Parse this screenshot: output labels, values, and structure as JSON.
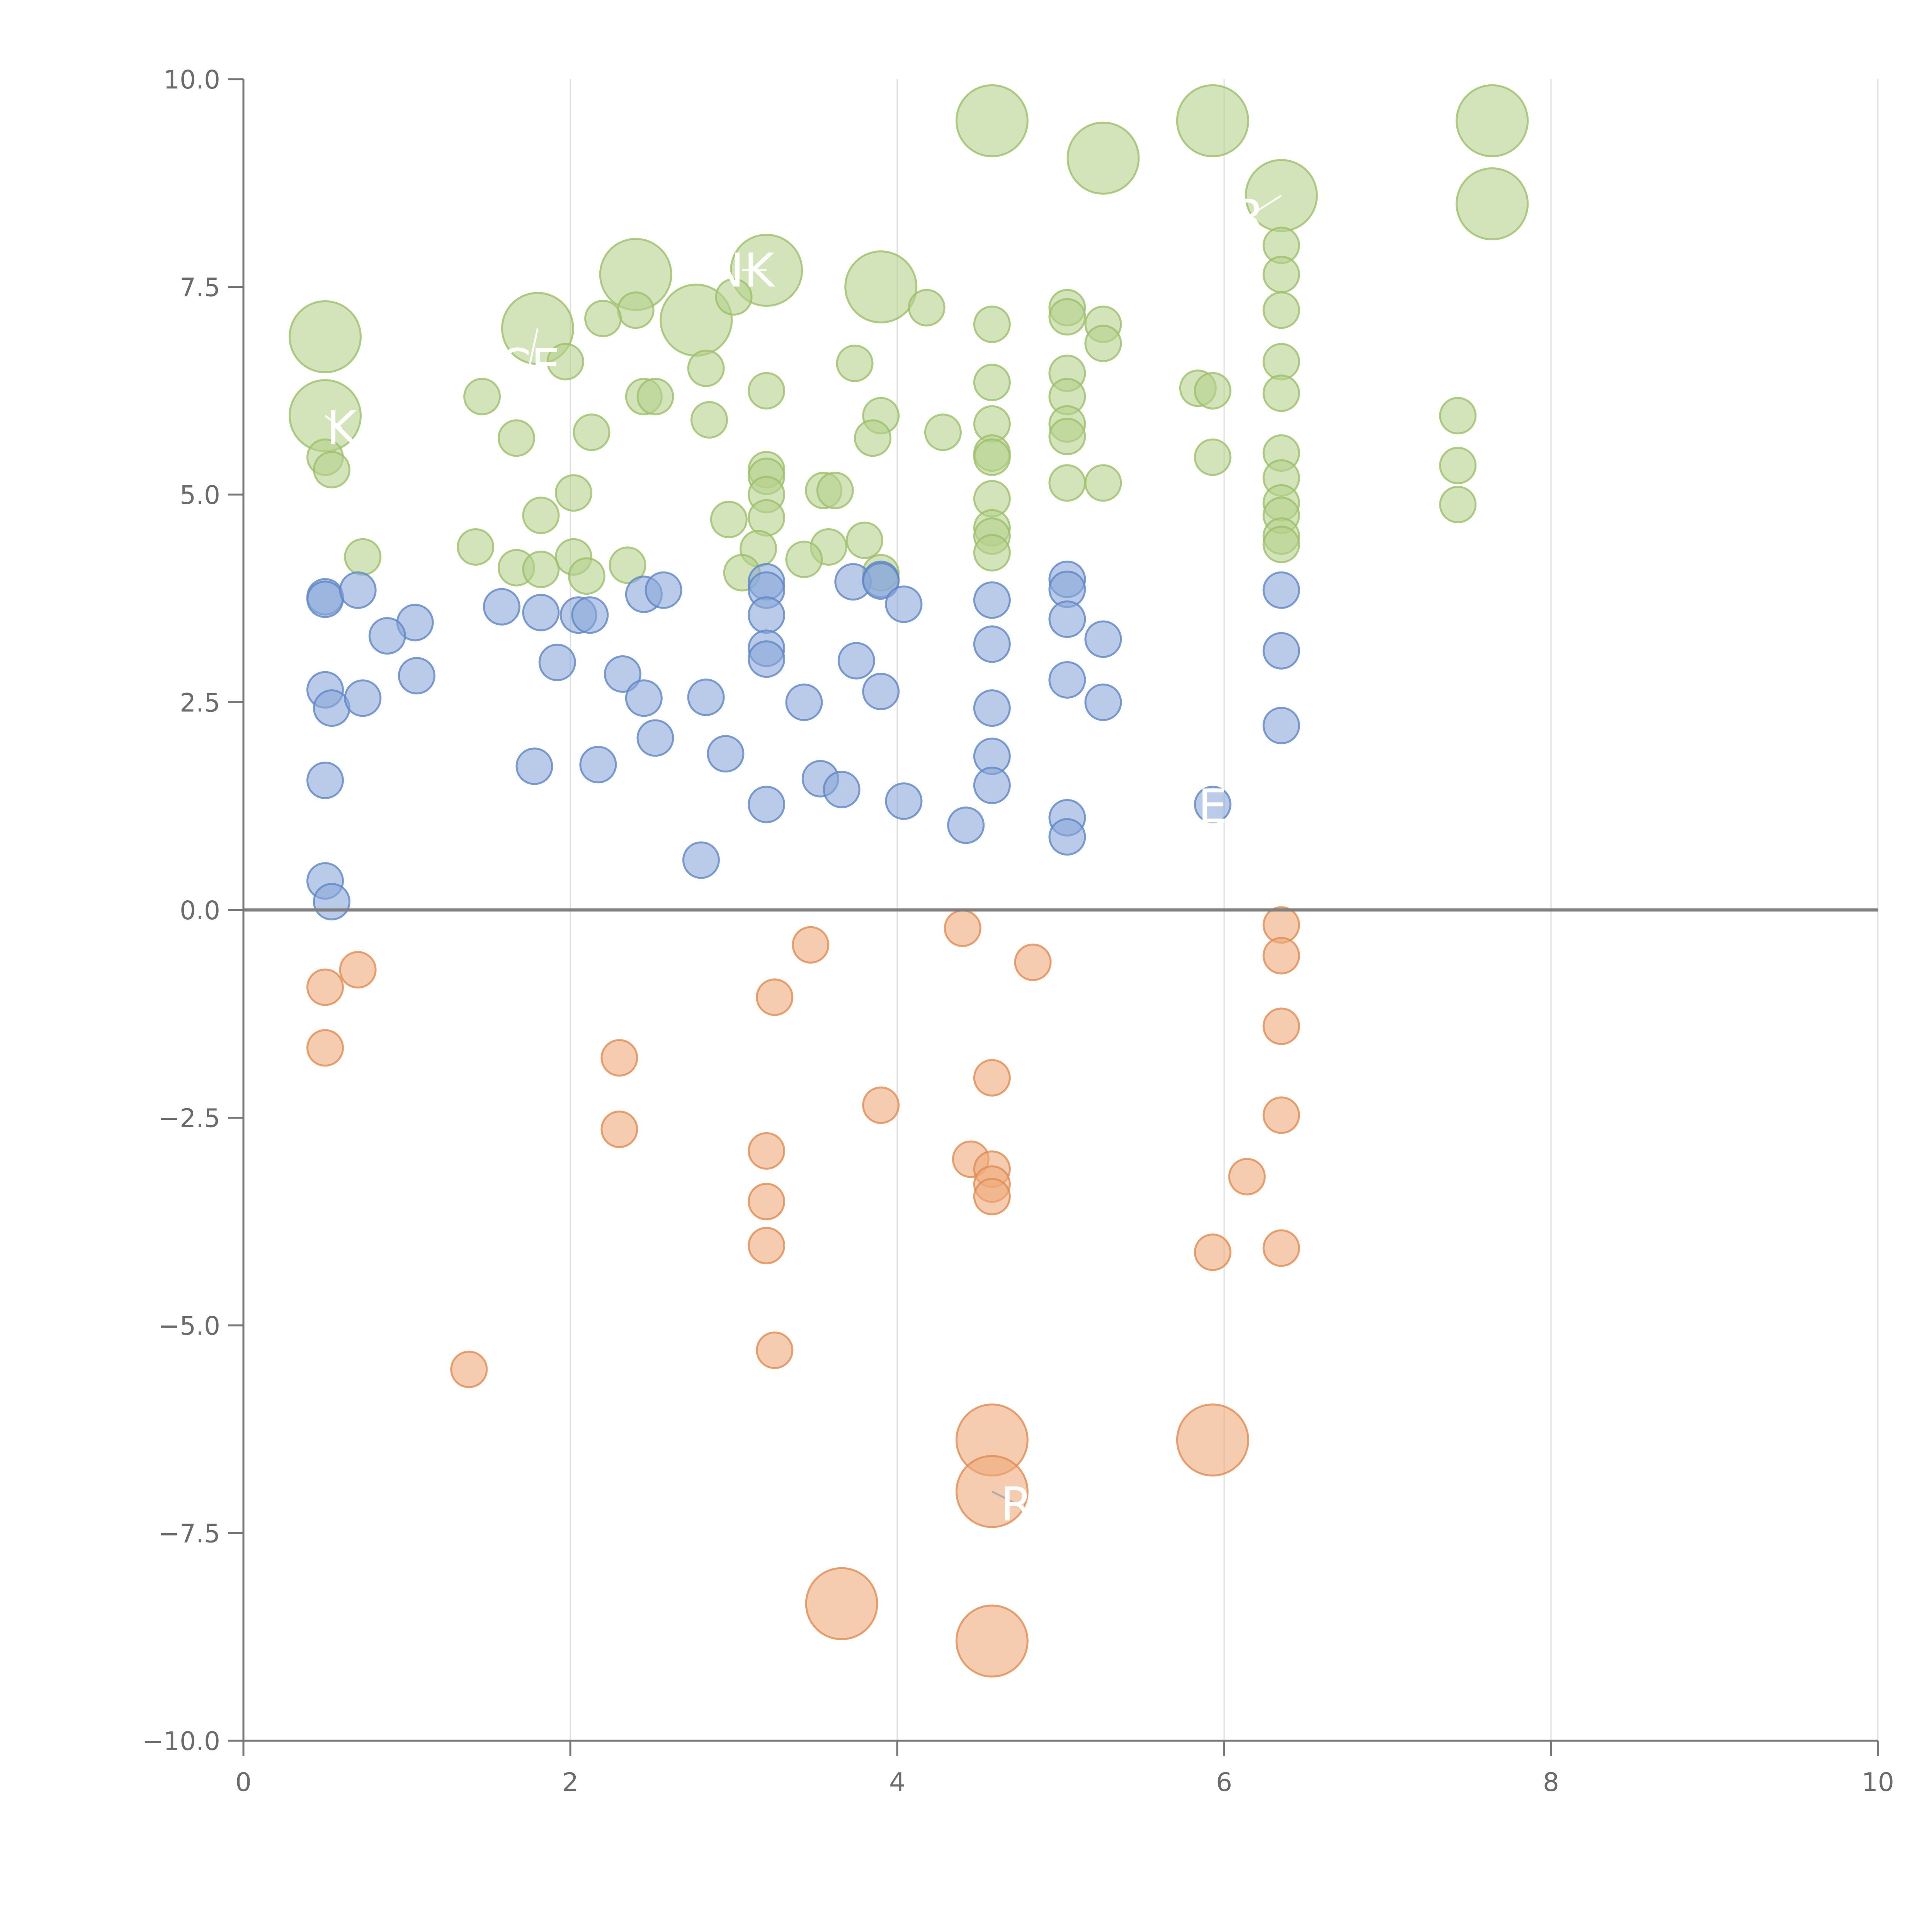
{
  "chart_data": {
    "type": "scatter",
    "title": "",
    "xlabel": "",
    "ylabel": "",
    "xlim": [
      0,
      10
    ],
    "ylim": [
      -10,
      10
    ],
    "x_ticks": [
      0,
      2,
      4,
      6,
      8,
      10
    ],
    "x_tick_labels": [
      "0",
      "2",
      "4",
      "6",
      "8",
      "10"
    ],
    "y_ticks": [
      -10,
      -7.5,
      -5,
      -2.5,
      0,
      2.5,
      5,
      7.5,
      10
    ],
    "y_tick_labels": [
      "−10.0",
      "−7.5",
      "−5.0",
      "−2.5",
      "0.0",
      "2.5",
      "5.0",
      "7.5",
      "10.0"
    ],
    "grid": "vertical",
    "zero_line": true,
    "colors": {
      "green_fill": "#b5d08c",
      "green_edge": "#9cbf6a",
      "blue_fill": "#8aa8d8",
      "blue_edge": "#5f86c4",
      "orange_fill": "#eeaa7a",
      "orange_edge": "#e08c52",
      "axis": "#777777",
      "grid": "#dddddd",
      "zero_line": "#808080",
      "annotation_line_light": "#ffffff",
      "annotation_line_dark": "#aaaaaa"
    },
    "series": [
      {
        "name": "green",
        "color": "green",
        "points": [
          [
            4.58,
            9.5,
            1
          ],
          [
            5.93,
            9.5,
            1
          ],
          [
            7.64,
            9.5,
            1
          ],
          [
            5.26,
            9.05,
            1
          ],
          [
            6.35,
            8.6,
            1
          ],
          [
            7.64,
            8.5,
            1
          ],
          [
            6.35,
            8.0,
            0
          ],
          [
            6.35,
            7.65,
            0
          ],
          [
            6.35,
            7.22,
            0
          ],
          [
            6.35,
            6.6,
            0
          ],
          [
            6.35,
            6.22,
            0
          ],
          [
            6.35,
            5.5,
            0
          ],
          [
            6.35,
            5.2,
            0
          ],
          [
            6.35,
            4.9,
            0
          ],
          [
            6.35,
            4.75,
            0
          ],
          [
            6.35,
            4.5,
            0
          ],
          [
            6.35,
            4.4,
            0
          ],
          [
            2.4,
            7.65,
            1
          ],
          [
            3.2,
            7.7,
            1
          ],
          [
            3.9,
            7.5,
            1
          ],
          [
            2.77,
            7.1,
            1
          ],
          [
            1.8,
            7.0,
            1
          ],
          [
            0.5,
            6.9,
            1
          ],
          [
            0.5,
            5.95,
            1
          ],
          [
            2.4,
            7.22,
            0
          ],
          [
            2.2,
            7.12,
            0
          ],
          [
            3.0,
            7.38,
            0
          ],
          [
            4.18,
            7.25,
            0
          ],
          [
            4.58,
            7.05,
            0
          ],
          [
            5.04,
            7.25,
            0
          ],
          [
            5.04,
            7.14,
            0
          ],
          [
            5.26,
            7.05,
            0
          ],
          [
            5.26,
            6.82,
            0
          ],
          [
            2.83,
            6.52,
            0
          ],
          [
            3.74,
            6.58,
            0
          ],
          [
            1.97,
            6.6,
            0
          ],
          [
            4.58,
            6.35,
            0
          ],
          [
            5.04,
            6.46,
            0
          ],
          [
            5.04,
            6.18,
            0
          ],
          [
            5.84,
            6.28,
            0
          ],
          [
            5.93,
            6.25,
            0
          ],
          [
            1.46,
            6.18,
            0
          ],
          [
            2.45,
            6.18,
            0
          ],
          [
            2.52,
            6.18,
            0
          ],
          [
            3.2,
            6.25,
            0
          ],
          [
            3.9,
            5.95,
            0
          ],
          [
            2.85,
            5.9,
            0
          ],
          [
            7.43,
            5.95,
            0
          ],
          [
            1.67,
            5.68,
            0
          ],
          [
            2.13,
            5.75,
            0
          ],
          [
            3.85,
            5.68,
            0
          ],
          [
            4.28,
            5.75,
            0
          ],
          [
            4.58,
            5.85,
            0
          ],
          [
            5.04,
            5.85,
            0
          ],
          [
            5.04,
            5.7,
            0
          ],
          [
            0.5,
            5.45,
            0
          ],
          [
            0.54,
            5.3,
            0
          ],
          [
            4.58,
            5.5,
            0
          ],
          [
            4.58,
            5.45,
            0
          ],
          [
            5.93,
            5.45,
            0
          ],
          [
            7.43,
            5.35,
            0
          ],
          [
            3.2,
            5.3,
            0
          ],
          [
            3.2,
            5.22,
            0
          ],
          [
            3.2,
            5.0,
            0
          ],
          [
            3.55,
            5.05,
            0
          ],
          [
            3.62,
            5.05,
            0
          ],
          [
            2.02,
            5.02,
            0
          ],
          [
            5.04,
            5.14,
            0
          ],
          [
            5.26,
            5.14,
            0
          ],
          [
            4.58,
            4.95,
            0
          ],
          [
            7.43,
            4.88,
            0
          ],
          [
            1.82,
            4.75,
            0
          ],
          [
            2.97,
            4.7,
            0
          ],
          [
            3.2,
            4.72,
            0
          ],
          [
            4.58,
            4.6,
            0
          ],
          [
            4.58,
            4.5,
            0
          ],
          [
            1.42,
            4.37,
            0
          ],
          [
            3.15,
            4.35,
            0
          ],
          [
            3.58,
            4.37,
            0
          ],
          [
            3.8,
            4.45,
            0
          ],
          [
            4.58,
            4.3,
            0
          ],
          [
            0.73,
            4.25,
            0
          ],
          [
            2.02,
            4.25,
            0
          ],
          [
            3.43,
            4.22,
            0
          ],
          [
            1.67,
            4.12,
            0
          ],
          [
            1.82,
            4.1,
            0
          ],
          [
            2.35,
            4.15,
            0
          ],
          [
            2.1,
            4.02,
            0
          ],
          [
            3.05,
            4.06,
            0
          ],
          [
            3.9,
            4.06,
            0
          ]
        ]
      },
      {
        "name": "blue",
        "color": "blue",
        "points": [
          [
            0.5,
            3.77,
            0
          ],
          [
            0.5,
            3.74,
            0
          ],
          [
            0.7,
            3.85,
            0
          ],
          [
            1.05,
            3.46,
            0
          ],
          [
            0.88,
            3.3,
            0
          ],
          [
            1.58,
            3.65,
            0
          ],
          [
            1.82,
            3.58,
            0
          ],
          [
            2.05,
            3.55,
            0
          ],
          [
            2.12,
            3.55,
            0
          ],
          [
            2.45,
            3.8,
            0
          ],
          [
            2.57,
            3.85,
            0
          ],
          [
            3.2,
            3.95,
            0
          ],
          [
            3.2,
            3.85,
            0
          ],
          [
            3.2,
            3.55,
            0
          ],
          [
            3.2,
            3.15,
            0
          ],
          [
            3.2,
            3.02,
            0
          ],
          [
            3.73,
            3.95,
            0
          ],
          [
            3.9,
            3.98,
            0
          ],
          [
            3.9,
            3.96,
            0
          ],
          [
            4.04,
            3.68,
            0
          ],
          [
            4.58,
            3.73,
            0
          ],
          [
            4.58,
            3.2,
            0
          ],
          [
            5.04,
            3.98,
            0
          ],
          [
            5.04,
            3.86,
            0
          ],
          [
            5.04,
            3.5,
            0
          ],
          [
            5.26,
            3.26,
            0
          ],
          [
            6.35,
            3.85,
            0
          ],
          [
            6.35,
            3.12,
            0
          ],
          [
            1.06,
            2.82,
            0
          ],
          [
            1.92,
            2.98,
            0
          ],
          [
            2.32,
            2.84,
            0
          ],
          [
            3.75,
            3.0,
            0
          ],
          [
            5.04,
            2.77,
            0
          ],
          [
            0.5,
            2.65,
            0
          ],
          [
            0.54,
            2.43,
            0
          ],
          [
            0.73,
            2.55,
            0
          ],
          [
            2.45,
            2.55,
            0
          ],
          [
            2.83,
            2.56,
            0
          ],
          [
            3.43,
            2.5,
            0
          ],
          [
            3.9,
            2.63,
            0
          ],
          [
            4.58,
            2.43,
            0
          ],
          [
            5.26,
            2.5,
            0
          ],
          [
            6.35,
            2.22,
            0
          ],
          [
            2.52,
            2.07,
            0
          ],
          [
            2.95,
            1.88,
            0
          ],
          [
            4.58,
            1.85,
            0
          ],
          [
            1.78,
            1.73,
            0
          ],
          [
            2.17,
            1.75,
            0
          ],
          [
            0.5,
            1.56,
            0
          ],
          [
            3.53,
            1.58,
            0
          ],
          [
            3.66,
            1.45,
            0
          ],
          [
            4.58,
            1.5,
            0
          ],
          [
            3.2,
            1.27,
            0
          ],
          [
            4.04,
            1.31,
            0
          ],
          [
            5.93,
            1.27,
            0
          ],
          [
            5.04,
            1.11,
            0
          ],
          [
            5.04,
            0.88,
            0
          ],
          [
            4.42,
            1.02,
            0
          ],
          [
            2.8,
            0.6,
            0
          ],
          [
            0.5,
            0.35,
            0
          ],
          [
            0.54,
            0.1,
            0
          ]
        ]
      },
      {
        "name": "orange",
        "color": "orange",
        "points": [
          [
            4.4,
            -0.22,
            0
          ],
          [
            6.35,
            -0.18,
            0
          ],
          [
            6.35,
            -0.55,
            0
          ],
          [
            3.47,
            -0.42,
            0
          ],
          [
            4.83,
            -0.63,
            0
          ],
          [
            0.7,
            -0.72,
            0
          ],
          [
            0.5,
            -0.93,
            0
          ],
          [
            3.25,
            -1.05,
            0
          ],
          [
            6.35,
            -1.4,
            0
          ],
          [
            0.5,
            -1.66,
            0
          ],
          [
            2.3,
            -1.78,
            0
          ],
          [
            4.58,
            -2.02,
            0
          ],
          [
            3.9,
            -2.35,
            0
          ],
          [
            6.35,
            -2.47,
            0
          ],
          [
            2.3,
            -2.64,
            0
          ],
          [
            3.2,
            -2.9,
            0
          ],
          [
            4.45,
            -3.0,
            0
          ],
          [
            4.58,
            -3.12,
            0
          ],
          [
            4.58,
            -3.3,
            0
          ],
          [
            4.58,
            -3.45,
            0
          ],
          [
            6.14,
            -3.21,
            0
          ],
          [
            3.2,
            -3.51,
            0
          ],
          [
            3.2,
            -4.04,
            0
          ],
          [
            5.93,
            -4.12,
            0
          ],
          [
            6.35,
            -4.07,
            0
          ],
          [
            3.25,
            -5.3,
            0
          ],
          [
            1.38,
            -5.53,
            0
          ],
          [
            4.58,
            -6.38,
            1
          ],
          [
            5.93,
            -6.38,
            1
          ],
          [
            4.58,
            -7.0,
            1
          ],
          [
            3.66,
            -8.35,
            1
          ],
          [
            4.58,
            -8.8,
            1
          ]
        ]
      }
    ],
    "annotations": [
      {
        "text": "NK",
        "x": 3.05,
        "y": 7.7,
        "point": [
          3.2,
          7.7
        ],
        "line": "light"
      },
      {
        "text": "R",
        "x": 6.15,
        "y": 8.35,
        "point": [
          6.35,
          8.6
        ],
        "line": "light"
      },
      {
        "text": "CE",
        "x": 1.75,
        "y": 6.55,
        "point": [
          1.8,
          7.0
        ],
        "line": "light"
      },
      {
        "text": "K",
        "x": 0.6,
        "y": 5.8,
        "point": [
          0.5,
          5.95
        ],
        "line": "light"
      },
      {
        "text": "E",
        "x": 5.93,
        "y": 1.25,
        "point": [
          5.93,
          1.27
        ],
        "line": "light"
      },
      {
        "text": "R",
        "x": 4.73,
        "y": -7.15,
        "point": [
          4.58,
          -7.0
        ],
        "line": "dark"
      }
    ]
  }
}
